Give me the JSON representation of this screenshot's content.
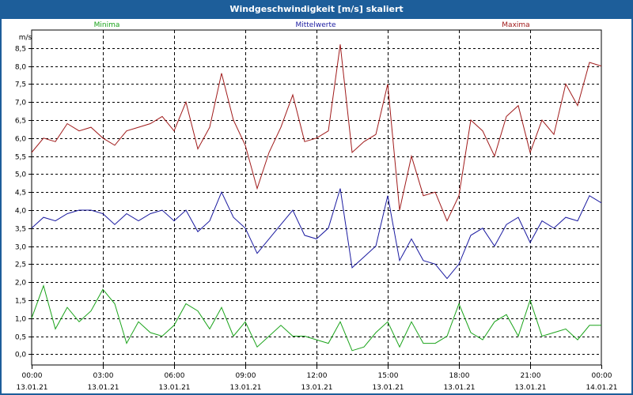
{
  "window": {
    "title": "Windgeschwindigkeit [m/s] skaliert"
  },
  "chart_data": {
    "type": "line",
    "title": "Windgeschwindigkeit [m/s] skaliert",
    "ylabel": "m/s",
    "xlabel": "",
    "ylim": [
      -0.3,
      9.0
    ],
    "yticks": [
      "0,0",
      "0,5",
      "1,0",
      "1,5",
      "2,0",
      "2,5",
      "3,0",
      "3,5",
      "4,0",
      "4,5",
      "5,0",
      "5,5",
      "6,0",
      "6,5",
      "7,0",
      "7,5",
      "8,0",
      "8,5"
    ],
    "xticks": [
      {
        "time": "00:00",
        "date": "13.01.21"
      },
      {
        "time": "03:00",
        "date": "13.01.21"
      },
      {
        "time": "06:00",
        "date": "13.01.21"
      },
      {
        "time": "09:00",
        "date": "13.01.21"
      },
      {
        "time": "12:00",
        "date": "13.01.21"
      },
      {
        "time": "15:00",
        "date": "13.01.21"
      },
      {
        "time": "18:00",
        "date": "13.01.21"
      },
      {
        "time": "21:00",
        "date": "13.01.21"
      },
      {
        "time": "00:00",
        "date": "14.01.21"
      }
    ],
    "x_range_hours": [
      0,
      24
    ],
    "legend": [
      {
        "name": "Minima",
        "color": "#1aa31a"
      },
      {
        "name": "Mittelwerte",
        "color": "#1a1aa0"
      },
      {
        "name": "Maxima",
        "color": "#a01a1a"
      }
    ],
    "series": [
      {
        "name": "Maxima",
        "color": "#a01a1a",
        "x": [
          0,
          0.5,
          1,
          1.5,
          2,
          2.5,
          3,
          3.5,
          4,
          4.5,
          5,
          5.5,
          6,
          6.5,
          7,
          7.5,
          8,
          8.5,
          9,
          9.5,
          10,
          10.5,
          11,
          11.5,
          12,
          12.5,
          13,
          13.5,
          14,
          14.5,
          15,
          15.5,
          16,
          16.5,
          17,
          17.5,
          18,
          18.5,
          19,
          19.5,
          20,
          20.5,
          21,
          21.5,
          22,
          22.5,
          23,
          23.5,
          24
        ],
        "values": [
          5.6,
          6.0,
          5.9,
          6.4,
          6.2,
          6.3,
          6.0,
          5.8,
          6.2,
          6.3,
          6.4,
          6.6,
          6.2,
          7.0,
          5.7,
          6.3,
          7.8,
          6.5,
          5.8,
          4.6,
          5.6,
          6.3,
          7.2,
          5.9,
          6.0,
          6.2,
          8.6,
          5.6,
          5.9,
          6.1,
          7.5,
          4.0,
          5.5,
          4.4,
          4.5,
          3.7,
          4.4,
          6.5,
          6.2,
          5.5,
          6.6,
          6.9,
          5.6,
          6.5,
          6.1,
          7.5,
          6.9,
          8.1,
          8.0
        ]
      },
      {
        "name": "Mittelwerte",
        "color": "#1a1aa0",
        "x": [
          0,
          0.5,
          1,
          1.5,
          2,
          2.5,
          3,
          3.5,
          4,
          4.5,
          5,
          5.5,
          6,
          6.5,
          7,
          7.5,
          8,
          8.5,
          9,
          9.5,
          10,
          10.5,
          11,
          11.5,
          12,
          12.5,
          13,
          13.5,
          14,
          14.5,
          15,
          15.5,
          16,
          16.5,
          17,
          17.5,
          18,
          18.5,
          19,
          19.5,
          20,
          20.5,
          21,
          21.5,
          22,
          22.5,
          23,
          23.5,
          24
        ],
        "values": [
          3.5,
          3.8,
          3.7,
          3.9,
          4.0,
          4.0,
          3.9,
          3.6,
          3.9,
          3.7,
          3.9,
          4.0,
          3.7,
          4.0,
          3.4,
          3.7,
          4.5,
          3.8,
          3.5,
          2.8,
          3.2,
          3.6,
          4.0,
          3.3,
          3.2,
          3.5,
          4.6,
          2.4,
          2.7,
          3.0,
          4.4,
          2.6,
          3.2,
          2.6,
          2.5,
          2.1,
          2.5,
          3.3,
          3.5,
          3.0,
          3.6,
          3.8,
          3.1,
          3.7,
          3.5,
          3.8,
          3.7,
          4.4,
          4.2
        ]
      },
      {
        "name": "Minima",
        "color": "#1aa31a",
        "x": [
          0,
          0.5,
          1,
          1.5,
          2,
          2.5,
          3,
          3.5,
          4,
          4.5,
          5,
          5.5,
          6,
          6.5,
          7,
          7.5,
          8,
          8.5,
          9,
          9.5,
          10,
          10.5,
          11,
          11.5,
          12,
          12.5,
          13,
          13.5,
          14,
          14.5,
          15,
          15.5,
          16,
          16.5,
          17,
          17.5,
          18,
          18.5,
          19,
          19.5,
          20,
          20.5,
          21,
          21.5,
          22,
          22.5,
          23,
          23.5,
          24
        ],
        "values": [
          1.0,
          1.9,
          0.7,
          1.3,
          0.9,
          1.2,
          1.8,
          1.4,
          0.3,
          0.9,
          0.6,
          0.5,
          0.8,
          1.4,
          1.2,
          0.7,
          1.3,
          0.5,
          0.9,
          0.2,
          0.5,
          0.8,
          0.5,
          0.5,
          0.4,
          0.3,
          0.9,
          0.1,
          0.2,
          0.6,
          0.9,
          0.2,
          0.9,
          0.3,
          0.3,
          0.5,
          1.4,
          0.6,
          0.4,
          0.9,
          1.1,
          0.5,
          1.5,
          0.5,
          0.6,
          0.7,
          0.4,
          0.8,
          0.8
        ]
      }
    ]
  }
}
